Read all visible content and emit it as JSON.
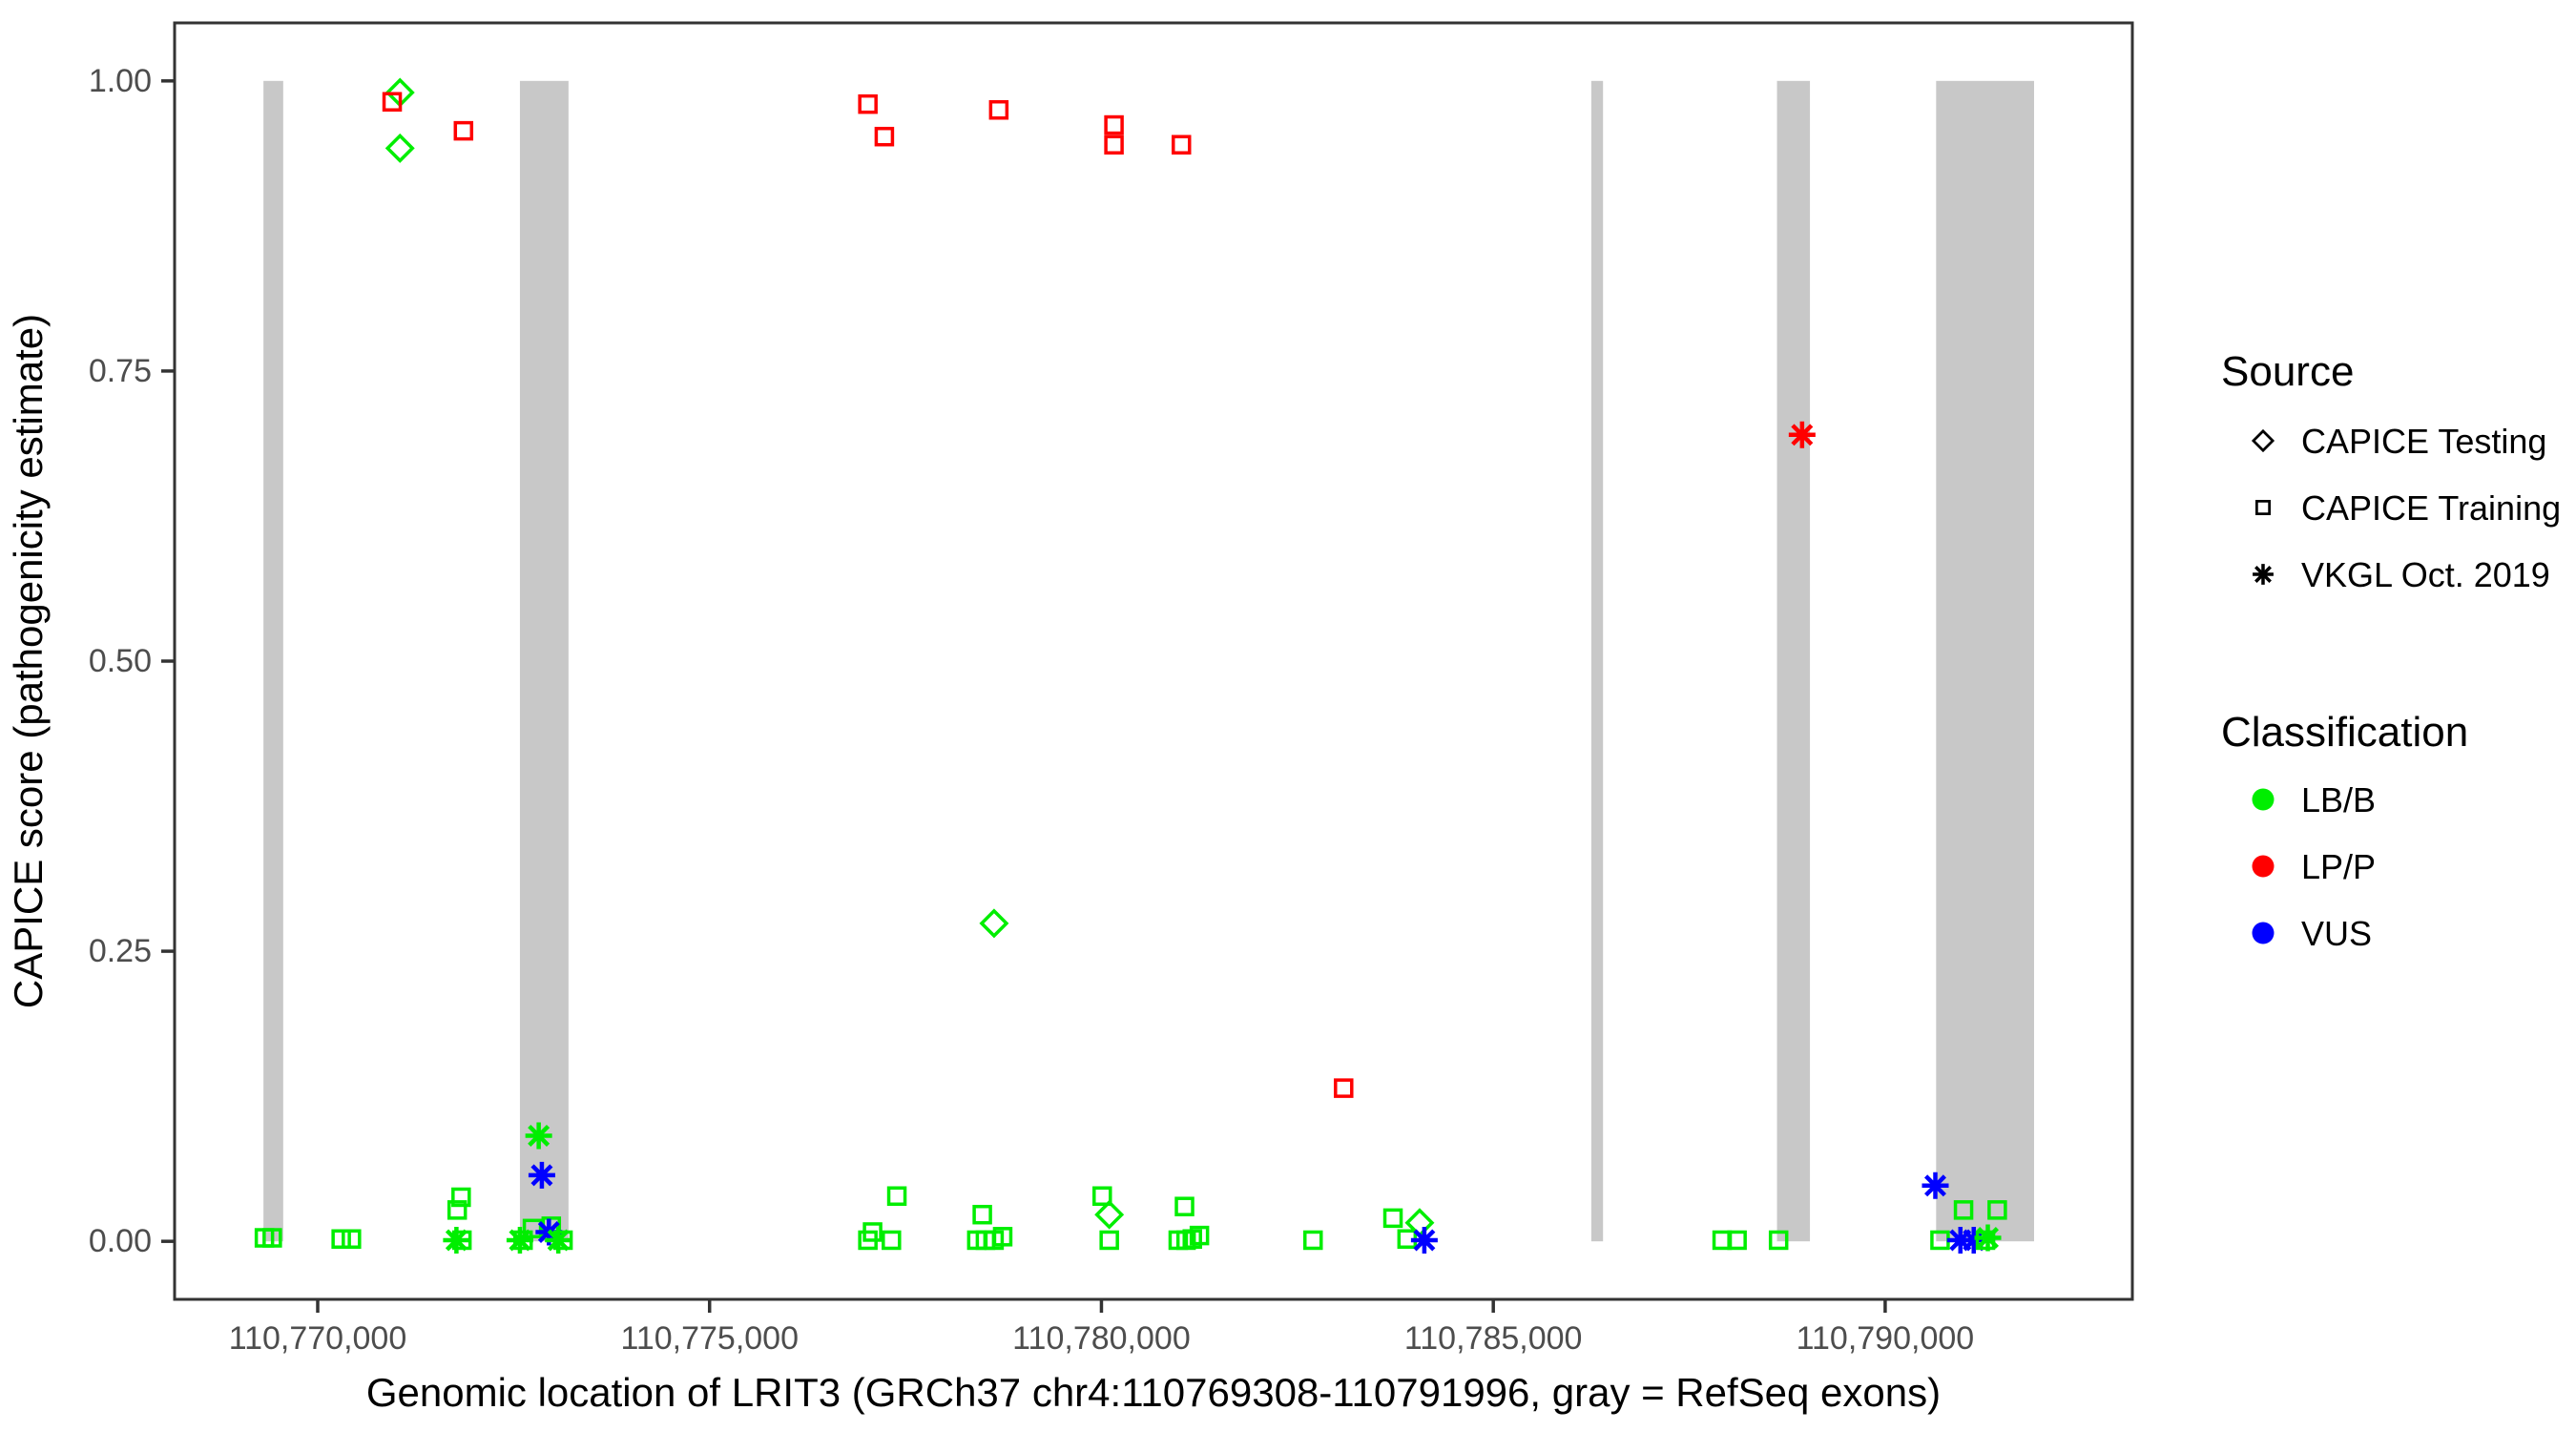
{
  "figure": {
    "background": "#FFFFFF"
  },
  "chart_data": {
    "type": "scatter",
    "title": "",
    "xlabel": "Genomic location of LRIT3 (GRCh37 chr4:110769308-110791996, gray = RefSeq exons)",
    "ylabel": "CAPICE score (pathogenicity estimate)",
    "xlim": [
      110768174,
      110793154
    ],
    "ylim": [
      -0.05,
      1.05
    ],
    "grid": "off",
    "x_ticks": [
      {
        "value": 110770000,
        "label": "110,770,000"
      },
      {
        "value": 110775000,
        "label": "110,775,000"
      },
      {
        "value": 110780000,
        "label": "110,780,000"
      },
      {
        "value": 110785000,
        "label": "110,785,000"
      },
      {
        "value": 110790000,
        "label": "110,790,000"
      }
    ],
    "y_ticks": [
      {
        "value": 0.0,
        "label": "0.00"
      },
      {
        "value": 0.25,
        "label": "0.25"
      },
      {
        "value": 0.5,
        "label": "0.50"
      },
      {
        "value": 0.75,
        "label": "0.75"
      },
      {
        "value": 1.0,
        "label": "1.00"
      }
    ],
    "exon_color": "#C8C8C8",
    "exons": [
      {
        "start": 110769308,
        "end": 110769560
      },
      {
        "start": 110772580,
        "end": 110773200
      },
      {
        "start": 110786250,
        "end": 110786400
      },
      {
        "start": 110788620,
        "end": 110789040
      },
      {
        "start": 110790650,
        "end": 110791900
      }
    ],
    "shape_by_source": {
      "CAPICE Testing": "diamond",
      "CAPICE Training": "square",
      "VKGL Oct. 2019": "asterisk"
    },
    "color_by_classification": {
      "LB/B": "#00EE00",
      "LP/P": "#FF0000",
      "VUS": "#0000FF"
    },
    "points": [
      {
        "pos": 110771050,
        "score": 0.99,
        "source": "CAPICE Testing",
        "classification": "LB/B"
      },
      {
        "pos": 110770950,
        "score": 0.982,
        "source": "CAPICE Training",
        "classification": "LP/P"
      },
      {
        "pos": 110771860,
        "score": 0.957,
        "source": "CAPICE Training",
        "classification": "LP/P"
      },
      {
        "pos": 110771050,
        "score": 0.942,
        "source": "CAPICE Testing",
        "classification": "LB/B"
      },
      {
        "pos": 110777020,
        "score": 0.98,
        "source": "CAPICE Training",
        "classification": "LP/P"
      },
      {
        "pos": 110777230,
        "score": 0.952,
        "source": "CAPICE Training",
        "classification": "LP/P"
      },
      {
        "pos": 110778690,
        "score": 0.975,
        "source": "CAPICE Training",
        "classification": "LP/P"
      },
      {
        "pos": 110780160,
        "score": 0.962,
        "source": "CAPICE Training",
        "classification": "LP/P"
      },
      {
        "pos": 110780160,
        "score": 0.945,
        "source": "CAPICE Training",
        "classification": "LP/P"
      },
      {
        "pos": 110781020,
        "score": 0.945,
        "source": "CAPICE Training",
        "classification": "LP/P"
      },
      {
        "pos": 110788940,
        "score": 0.695,
        "source": "VKGL Oct. 2019",
        "classification": "LP/P"
      },
      {
        "pos": 110778630,
        "score": 0.274,
        "source": "CAPICE Testing",
        "classification": "LB/B"
      },
      {
        "pos": 110783090,
        "score": 0.132,
        "source": "CAPICE Training",
        "classification": "LP/P"
      },
      {
        "pos": 110769320,
        "score": 0.003,
        "source": "CAPICE Training",
        "classification": "LB/B"
      },
      {
        "pos": 110769420,
        "score": 0.003,
        "source": "CAPICE Training",
        "classification": "LB/B"
      },
      {
        "pos": 110770300,
        "score": 0.002,
        "source": "CAPICE Training",
        "classification": "LB/B"
      },
      {
        "pos": 110770430,
        "score": 0.002,
        "source": "CAPICE Training",
        "classification": "LB/B"
      },
      {
        "pos": 110771770,
        "score": 0.001,
        "source": "VKGL Oct. 2019",
        "classification": "LB/B"
      },
      {
        "pos": 110771840,
        "score": 0.001,
        "source": "CAPICE Training",
        "classification": "LB/B"
      },
      {
        "pos": 110771780,
        "score": 0.027,
        "source": "CAPICE Training",
        "classification": "LB/B"
      },
      {
        "pos": 110771830,
        "score": 0.038,
        "source": "CAPICE Training",
        "classification": "LB/B"
      },
      {
        "pos": 110772820,
        "score": 0.091,
        "source": "VKGL Oct. 2019",
        "classification": "LB/B"
      },
      {
        "pos": 110772860,
        "score": 0.057,
        "source": "VKGL Oct. 2019",
        "classification": "VUS"
      },
      {
        "pos": 110772580,
        "score": 0.001,
        "source": "VKGL Oct. 2019",
        "classification": "LB/B"
      },
      {
        "pos": 110772620,
        "score": 0.001,
        "source": "CAPICE Training",
        "classification": "LB/B"
      },
      {
        "pos": 110772740,
        "score": 0.011,
        "source": "CAPICE Training",
        "classification": "LB/B"
      },
      {
        "pos": 110772980,
        "score": 0.013,
        "source": "CAPICE Training",
        "classification": "LB/B"
      },
      {
        "pos": 110772950,
        "score": 0.008,
        "source": "VKGL Oct. 2019",
        "classification": "VUS"
      },
      {
        "pos": 110773070,
        "score": 0.001,
        "source": "VKGL Oct. 2019",
        "classification": "LB/B"
      },
      {
        "pos": 110773130,
        "score": 0.001,
        "source": "CAPICE Training",
        "classification": "LB/B"
      },
      {
        "pos": 110777390,
        "score": 0.039,
        "source": "CAPICE Training",
        "classification": "LB/B"
      },
      {
        "pos": 110777080,
        "score": 0.008,
        "source": "CAPICE Training",
        "classification": "LB/B"
      },
      {
        "pos": 110777020,
        "score": 0.001,
        "source": "CAPICE Training",
        "classification": "LB/B"
      },
      {
        "pos": 110777320,
        "score": 0.001,
        "source": "CAPICE Training",
        "classification": "LB/B"
      },
      {
        "pos": 110778480,
        "score": 0.023,
        "source": "CAPICE Training",
        "classification": "LB/B"
      },
      {
        "pos": 110778410,
        "score": 0.001,
        "source": "CAPICE Training",
        "classification": "LB/B"
      },
      {
        "pos": 110778520,
        "score": 0.001,
        "source": "CAPICE Training",
        "classification": "LB/B"
      },
      {
        "pos": 110778630,
        "score": 0.001,
        "source": "CAPICE Training",
        "classification": "LB/B"
      },
      {
        "pos": 110778740,
        "score": 0.004,
        "source": "CAPICE Training",
        "classification": "LB/B"
      },
      {
        "pos": 110780010,
        "score": 0.039,
        "source": "CAPICE Training",
        "classification": "LB/B"
      },
      {
        "pos": 110780100,
        "score": 0.023,
        "source": "CAPICE Testing",
        "classification": "LB/B"
      },
      {
        "pos": 110780100,
        "score": 0.001,
        "source": "CAPICE Training",
        "classification": "LB/B"
      },
      {
        "pos": 110781060,
        "score": 0.03,
        "source": "CAPICE Training",
        "classification": "LB/B"
      },
      {
        "pos": 110780980,
        "score": 0.001,
        "source": "CAPICE Training",
        "classification": "LB/B"
      },
      {
        "pos": 110781080,
        "score": 0.001,
        "source": "CAPICE Training",
        "classification": "LB/B"
      },
      {
        "pos": 110781160,
        "score": 0.002,
        "source": "CAPICE Training",
        "classification": "LB/B"
      },
      {
        "pos": 110781250,
        "score": 0.005,
        "source": "CAPICE Training",
        "classification": "LB/B"
      },
      {
        "pos": 110782700,
        "score": 0.001,
        "source": "CAPICE Training",
        "classification": "LB/B"
      },
      {
        "pos": 110783720,
        "score": 0.02,
        "source": "CAPICE Training",
        "classification": "LB/B"
      },
      {
        "pos": 110783900,
        "score": 0.002,
        "source": "CAPICE Training",
        "classification": "LB/B"
      },
      {
        "pos": 110784060,
        "score": 0.016,
        "source": "CAPICE Testing",
        "classification": "LB/B"
      },
      {
        "pos": 110784120,
        "score": 0.001,
        "source": "VKGL Oct. 2019",
        "classification": "VUS"
      },
      {
        "pos": 110787920,
        "score": 0.001,
        "source": "CAPICE Training",
        "classification": "LB/B"
      },
      {
        "pos": 110788110,
        "score": 0.001,
        "source": "CAPICE Training",
        "classification": "LB/B"
      },
      {
        "pos": 110788640,
        "score": 0.001,
        "source": "CAPICE Training",
        "classification": "LB/B"
      },
      {
        "pos": 110790640,
        "score": 0.048,
        "source": "VKGL Oct. 2019",
        "classification": "VUS"
      },
      {
        "pos": 110791000,
        "score": 0.027,
        "source": "CAPICE Training",
        "classification": "LB/B"
      },
      {
        "pos": 110791430,
        "score": 0.027,
        "source": "CAPICE Training",
        "classification": "LB/B"
      },
      {
        "pos": 110790700,
        "score": 0.001,
        "source": "CAPICE Training",
        "classification": "LB/B"
      },
      {
        "pos": 110790960,
        "score": 0.001,
        "source": "VKGL Oct. 2019",
        "classification": "VUS"
      },
      {
        "pos": 110791130,
        "score": 0.001,
        "source": "VKGL Oct. 2019",
        "classification": "VUS"
      },
      {
        "pos": 110791310,
        "score": 0.003,
        "source": "VKGL Oct. 2019",
        "classification": "LB/B"
      },
      {
        "pos": 110791280,
        "score": 0.001,
        "source": "CAPICE Training",
        "classification": "LB/B"
      }
    ]
  },
  "legend": {
    "source": {
      "title": "Source",
      "items": [
        {
          "label": "CAPICE Testing",
          "symbol": "diamond"
        },
        {
          "label": "CAPICE Training",
          "symbol": "square"
        },
        {
          "label": "VKGL Oct. 2019",
          "symbol": "asterisk"
        }
      ],
      "symbol_color": "#000000"
    },
    "classification": {
      "title": "Classification",
      "items": [
        {
          "label": "LB/B",
          "color": "#00EE00"
        },
        {
          "label": "LP/P",
          "color": "#FF0000"
        },
        {
          "label": "VUS",
          "color": "#0000FF"
        }
      ]
    }
  },
  "style": {
    "panel_border_color": "#333333",
    "tick_color": "#333333",
    "tick_label_color": "#4D4D4D"
  }
}
